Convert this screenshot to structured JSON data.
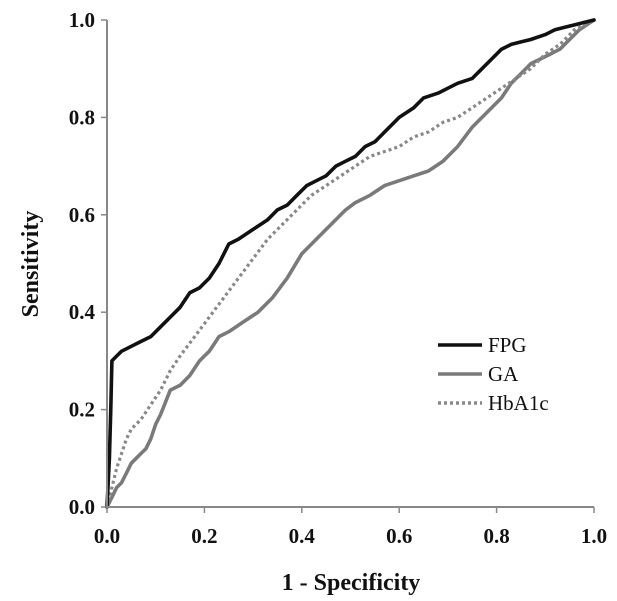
{
  "chart_data": {
    "type": "line",
    "title": "",
    "xlabel": "1 - Specificity",
    "ylabel": "Sensitivity",
    "xlim": [
      0,
      1
    ],
    "ylim": [
      0,
      1
    ],
    "xticks": [
      "0.0",
      "0.2",
      "0.4",
      "0.6",
      "0.8",
      "1.0"
    ],
    "yticks": [
      "0.0",
      "0.2",
      "0.4",
      "0.6",
      "0.8",
      "1.0"
    ],
    "grid": false,
    "legend_position": "center-right",
    "series": [
      {
        "name": "FPG",
        "color": "#111111",
        "style": "solid",
        "x": [
          0,
          0.005,
          0.008,
          0.01,
          0.02,
          0.03,
          0.05,
          0.07,
          0.09,
          0.11,
          0.13,
          0.15,
          0.17,
          0.19,
          0.21,
          0.23,
          0.25,
          0.27,
          0.3,
          0.33,
          0.35,
          0.37,
          0.39,
          0.41,
          0.43,
          0.45,
          0.47,
          0.49,
          0.51,
          0.53,
          0.55,
          0.57,
          0.6,
          0.63,
          0.65,
          0.68,
          0.7,
          0.72,
          0.75,
          0.77,
          0.79,
          0.81,
          0.83,
          0.85,
          0.87,
          0.9,
          0.92,
          0.94,
          0.96,
          0.98,
          1.0
        ],
        "y": [
          0,
          0.1,
          0.21,
          0.3,
          0.31,
          0.32,
          0.33,
          0.34,
          0.35,
          0.37,
          0.39,
          0.41,
          0.44,
          0.45,
          0.47,
          0.5,
          0.54,
          0.55,
          0.57,
          0.59,
          0.61,
          0.62,
          0.64,
          0.66,
          0.67,
          0.68,
          0.7,
          0.71,
          0.72,
          0.74,
          0.75,
          0.77,
          0.8,
          0.82,
          0.84,
          0.85,
          0.86,
          0.87,
          0.88,
          0.9,
          0.92,
          0.94,
          0.95,
          0.955,
          0.96,
          0.97,
          0.98,
          0.985,
          0.99,
          0.995,
          1.0
        ]
      },
      {
        "name": "GA",
        "color": "#7a7a7a",
        "style": "solid",
        "x": [
          0,
          0.01,
          0.02,
          0.03,
          0.04,
          0.05,
          0.06,
          0.07,
          0.08,
          0.09,
          0.1,
          0.11,
          0.13,
          0.15,
          0.17,
          0.19,
          0.21,
          0.23,
          0.25,
          0.28,
          0.31,
          0.34,
          0.37,
          0.4,
          0.43,
          0.46,
          0.49,
          0.51,
          0.54,
          0.57,
          0.6,
          0.63,
          0.66,
          0.69,
          0.72,
          0.75,
          0.78,
          0.81,
          0.83,
          0.85,
          0.87,
          0.89,
          0.91,
          0.93,
          0.95,
          0.97,
          1.0
        ],
        "y": [
          0,
          0.02,
          0.04,
          0.05,
          0.07,
          0.09,
          0.1,
          0.11,
          0.12,
          0.14,
          0.17,
          0.19,
          0.24,
          0.25,
          0.27,
          0.3,
          0.32,
          0.35,
          0.36,
          0.38,
          0.4,
          0.43,
          0.47,
          0.52,
          0.55,
          0.58,
          0.61,
          0.625,
          0.64,
          0.66,
          0.67,
          0.68,
          0.69,
          0.71,
          0.74,
          0.78,
          0.81,
          0.84,
          0.87,
          0.89,
          0.91,
          0.92,
          0.93,
          0.94,
          0.96,
          0.98,
          1.0
        ]
      },
      {
        "name": "HbA1c",
        "color": "#888888",
        "style": "dashed",
        "x": [
          0,
          0.01,
          0.02,
          0.03,
          0.04,
          0.05,
          0.07,
          0.09,
          0.11,
          0.13,
          0.15,
          0.18,
          0.21,
          0.24,
          0.27,
          0.3,
          0.33,
          0.36,
          0.39,
          0.42,
          0.45,
          0.48,
          0.51,
          0.54,
          0.57,
          0.6,
          0.63,
          0.66,
          0.69,
          0.72,
          0.75,
          0.78,
          0.81,
          0.84,
          0.87,
          0.9,
          0.93,
          0.96,
          1.0
        ],
        "y": [
          0,
          0.04,
          0.08,
          0.11,
          0.14,
          0.16,
          0.18,
          0.21,
          0.24,
          0.28,
          0.31,
          0.35,
          0.39,
          0.43,
          0.47,
          0.51,
          0.55,
          0.58,
          0.61,
          0.64,
          0.66,
          0.68,
          0.7,
          0.72,
          0.73,
          0.74,
          0.76,
          0.77,
          0.79,
          0.8,
          0.82,
          0.84,
          0.86,
          0.88,
          0.9,
          0.93,
          0.95,
          0.98,
          1.0
        ]
      }
    ]
  }
}
